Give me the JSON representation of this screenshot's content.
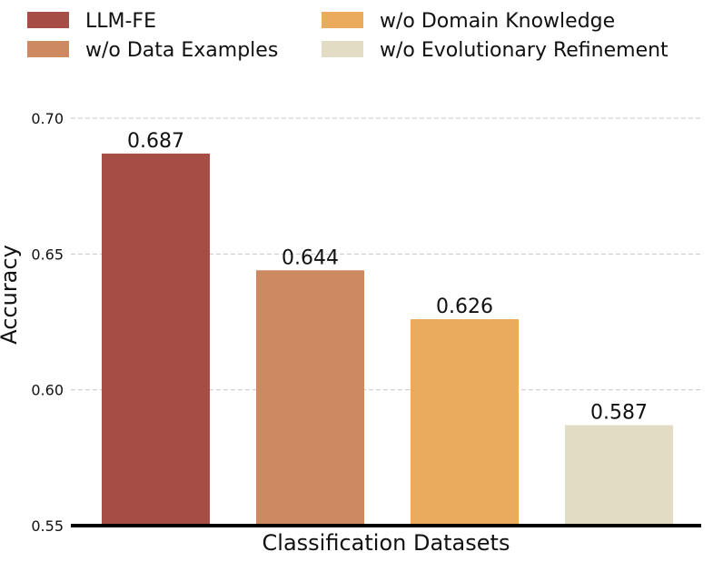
{
  "chart_data": {
    "type": "bar",
    "title": "",
    "xlabel": "Classification Datasets",
    "ylabel": "Accuracy",
    "ylim": [
      0.55,
      0.7
    ],
    "yticks": [
      "0.55",
      "0.60",
      "0.65",
      "0.70"
    ],
    "grid": "horizontal-dashed",
    "legend_position": "top",
    "series": [
      {
        "name": "LLM-FE",
        "value": 0.687,
        "label": "0.687",
        "color": "#a64d45"
      },
      {
        "name": "w/o Data Examples",
        "value": 0.644,
        "label": "0.644",
        "color": "#cd8960"
      },
      {
        "name": "w/o Domain Knowledge",
        "value": 0.626,
        "label": "0.626",
        "color": "#ebab5c"
      },
      {
        "name": "w/o Evolutionary Refinement",
        "value": 0.587,
        "label": "0.587",
        "color": "#e2dcc5"
      }
    ]
  }
}
